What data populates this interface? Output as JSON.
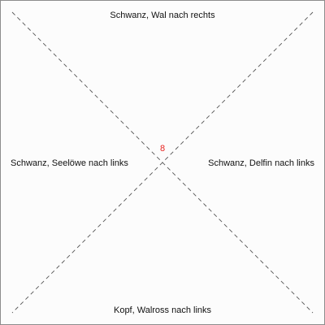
{
  "labels": {
    "top": "Schwanz, Wal nach rechts",
    "left": "Schwanz, Seelöwe nach links",
    "right": "Schwanz, Delfin nach links",
    "bottom": "Kopf, Walross nach links"
  },
  "center": {
    "number": "8",
    "color": "#e8231f"
  },
  "colors": {
    "line": "#555555",
    "border": "#8c8c8c",
    "background": "#fcfcfc"
  }
}
